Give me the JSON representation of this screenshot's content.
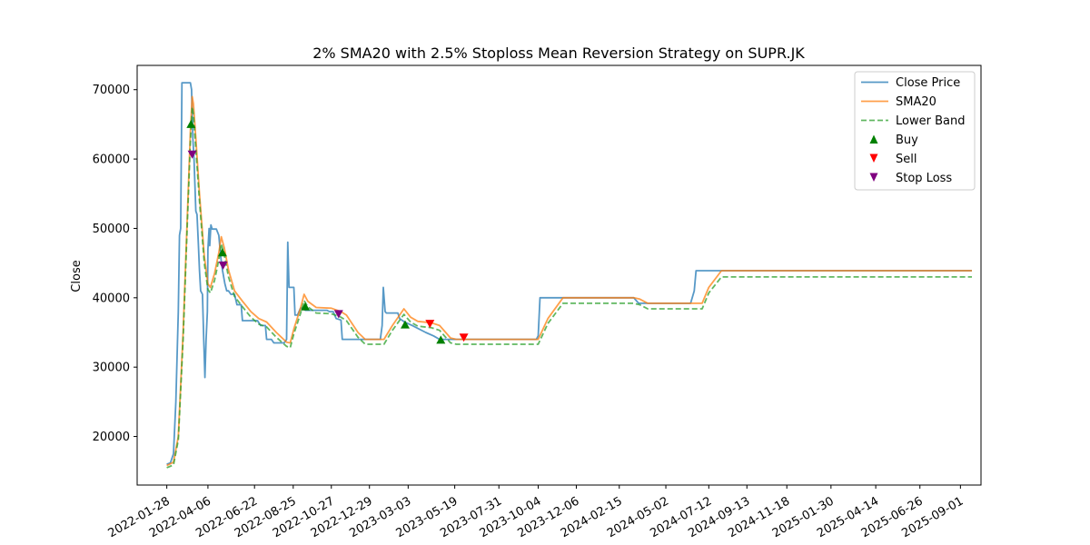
{
  "chart_data": {
    "type": "line",
    "title": "2% SMA20 with 2.5% Stoploss Mean Reversion Strategy on SUPR.JK",
    "xlabel": "",
    "ylabel": "Close",
    "ylim": [
      13000,
      73500
    ],
    "xlim": [
      "2021-12-10",
      "2025-10-05"
    ],
    "y_ticks": [
      20000,
      30000,
      40000,
      50000,
      60000,
      70000
    ],
    "x_ticks": [
      "2022-01-28",
      "2022-04-06",
      "2022-06-22",
      "2022-08-25",
      "2022-10-27",
      "2022-12-29",
      "2023-03-03",
      "2023-05-19",
      "2023-07-31",
      "2023-10-04",
      "2023-12-06",
      "2024-02-15",
      "2024-05-02",
      "2024-07-12",
      "2024-09-13",
      "2024-11-18",
      "2025-01-30",
      "2025-04-14",
      "2025-06-26",
      "2025-09-01"
    ],
    "grid": false,
    "legend_position": "top-right",
    "series": [
      {
        "name": "Close Price",
        "color": "#1f77b4",
        "style": "solid",
        "points": [
          [
            "2022-01-28",
            16000
          ],
          [
            "2022-02-03",
            16200
          ],
          [
            "2022-02-08",
            17500
          ],
          [
            "2022-02-12",
            25000
          ],
          [
            "2022-02-16",
            38000
          ],
          [
            "2022-02-18",
            49000
          ],
          [
            "2022-02-20",
            50000
          ],
          [
            "2022-02-22",
            71000
          ],
          [
            "2022-03-04",
            71000
          ],
          [
            "2022-03-08",
            71000
          ],
          [
            "2022-03-10",
            70000
          ],
          [
            "2022-03-12",
            63000
          ],
          [
            "2022-03-14",
            60000
          ],
          [
            "2022-03-17",
            52500
          ],
          [
            "2022-03-19",
            52000
          ],
          [
            "2022-03-21",
            48000
          ],
          [
            "2022-03-23",
            44000
          ],
          [
            "2022-03-25",
            41000
          ],
          [
            "2022-03-28",
            40500
          ],
          [
            "2022-03-30",
            34000
          ],
          [
            "2022-04-01",
            28500
          ],
          [
            "2022-04-03",
            34000
          ],
          [
            "2022-04-05",
            38000
          ],
          [
            "2022-04-06",
            47000
          ],
          [
            "2022-04-08",
            50000
          ],
          [
            "2022-04-09",
            47500
          ],
          [
            "2022-04-11",
            50500
          ],
          [
            "2022-04-13",
            49900
          ],
          [
            "2022-04-20",
            49900
          ],
          [
            "2022-04-24",
            49000
          ],
          [
            "2022-04-27",
            46000
          ],
          [
            "2022-04-30",
            44000
          ],
          [
            "2022-05-04",
            42000
          ],
          [
            "2022-05-07",
            41000
          ],
          [
            "2022-05-10",
            41000
          ],
          [
            "2022-05-14",
            40500
          ],
          [
            "2022-05-20",
            40500
          ],
          [
            "2022-05-24",
            39000
          ],
          [
            "2022-05-31",
            39000
          ],
          [
            "2022-06-02",
            36700
          ],
          [
            "2022-06-27",
            36700
          ],
          [
            "2022-07-02",
            36000
          ],
          [
            "2022-07-10",
            36000
          ],
          [
            "2022-07-12",
            34000
          ],
          [
            "2022-07-20",
            34000
          ],
          [
            "2022-07-24",
            33500
          ],
          [
            "2022-08-10",
            33500
          ],
          [
            "2022-08-14",
            34000
          ],
          [
            "2022-08-16",
            48000
          ],
          [
            "2022-08-18",
            41500
          ],
          [
            "2022-08-26",
            41500
          ],
          [
            "2022-08-28",
            37500
          ],
          [
            "2022-09-01",
            37500
          ],
          [
            "2022-09-06",
            38500
          ],
          [
            "2022-09-10",
            38500
          ],
          [
            "2022-09-14",
            38200
          ],
          [
            "2022-10-20",
            38200
          ],
          [
            "2022-10-24",
            38000
          ],
          [
            "2022-10-30",
            38000
          ],
          [
            "2022-11-04",
            37000
          ],
          [
            "2022-11-12",
            36800
          ],
          [
            "2022-11-14",
            34000
          ],
          [
            "2022-12-05",
            34000
          ],
          [
            "2022-12-08",
            34000
          ],
          [
            "2022-12-29",
            34000
          ],
          [
            "2023-01-16",
            34000
          ],
          [
            "2023-01-19",
            36000
          ],
          [
            "2023-01-21",
            41500
          ],
          [
            "2023-01-24",
            38000
          ],
          [
            "2023-01-26",
            37800
          ],
          [
            "2023-02-14",
            37800
          ],
          [
            "2023-02-17",
            37000
          ],
          [
            "2023-02-25",
            36500
          ],
          [
            "2023-03-10",
            36000
          ],
          [
            "2023-04-01",
            35000
          ],
          [
            "2023-04-14",
            34500
          ],
          [
            "2023-04-24",
            34000
          ],
          [
            "2023-05-19",
            34000
          ],
          [
            "2023-10-01",
            34000
          ],
          [
            "2023-10-04",
            34500
          ],
          [
            "2023-10-07",
            40000
          ],
          [
            "2024-03-10",
            40000
          ],
          [
            "2024-03-18",
            39200
          ],
          [
            "2024-06-12",
            39200
          ],
          [
            "2024-06-18",
            41000
          ],
          [
            "2024-06-21",
            43900
          ],
          [
            "2025-09-20",
            43900
          ]
        ]
      },
      {
        "name": "SMA20",
        "color": "#ff7f0e",
        "style": "solid",
        "points": [
          [
            "2022-01-28",
            15800
          ],
          [
            "2022-02-08",
            16300
          ],
          [
            "2022-02-16",
            20000
          ],
          [
            "2022-02-24",
            35000
          ],
          [
            "2022-03-03",
            52000
          ],
          [
            "2022-03-08",
            64000
          ],
          [
            "2022-03-11",
            69000
          ],
          [
            "2022-03-13",
            68000
          ],
          [
            "2022-03-17",
            63000
          ],
          [
            "2022-03-23",
            55000
          ],
          [
            "2022-03-31",
            46000
          ],
          [
            "2022-04-06",
            42000
          ],
          [
            "2022-04-10",
            41500
          ],
          [
            "2022-04-17",
            43500
          ],
          [
            "2022-04-24",
            46500
          ],
          [
            "2022-04-28",
            48800
          ],
          [
            "2022-05-03",
            47200
          ],
          [
            "2022-05-10",
            44000
          ],
          [
            "2022-05-20",
            41000
          ],
          [
            "2022-06-02",
            39500
          ],
          [
            "2022-06-16",
            38000
          ],
          [
            "2022-06-29",
            37000
          ],
          [
            "2022-07-12",
            36500
          ],
          [
            "2022-07-28",
            35000
          ],
          [
            "2022-08-14",
            33600
          ],
          [
            "2022-08-20",
            33500
          ],
          [
            "2022-08-26",
            35500
          ],
          [
            "2022-09-06",
            38500
          ],
          [
            "2022-09-12",
            40500
          ],
          [
            "2022-09-18",
            39500
          ],
          [
            "2022-10-02",
            38600
          ],
          [
            "2022-10-27",
            38500
          ],
          [
            "2022-11-12",
            38000
          ],
          [
            "2022-11-21",
            37500
          ],
          [
            "2022-12-10",
            35000
          ],
          [
            "2022-12-22",
            34000
          ],
          [
            "2023-01-22",
            34000
          ],
          [
            "2023-02-05",
            36000
          ],
          [
            "2023-02-24",
            38400
          ],
          [
            "2023-03-07",
            37200
          ],
          [
            "2023-03-19",
            36600
          ],
          [
            "2023-04-10",
            36400
          ],
          [
            "2023-04-24",
            36000
          ],
          [
            "2023-05-12",
            34200
          ],
          [
            "2023-05-22",
            34000
          ],
          [
            "2023-10-04",
            34000
          ],
          [
            "2023-10-20",
            37000
          ],
          [
            "2023-11-14",
            40000
          ],
          [
            "2024-03-10",
            40000
          ],
          [
            "2024-03-20",
            39800
          ],
          [
            "2024-04-02",
            39200
          ],
          [
            "2024-07-01",
            39200
          ],
          [
            "2024-07-12",
            41500
          ],
          [
            "2024-08-02",
            43900
          ],
          [
            "2025-09-20",
            43900
          ]
        ]
      },
      {
        "name": "Lower Band",
        "color": "#2ca02c",
        "style": "dashed",
        "points": [
          [
            "2022-01-28",
            15500
          ],
          [
            "2022-02-08",
            15900
          ],
          [
            "2022-02-16",
            19500
          ],
          [
            "2022-02-24",
            34000
          ],
          [
            "2022-03-03",
            51000
          ],
          [
            "2022-03-08",
            62500
          ],
          [
            "2022-03-11",
            67500
          ],
          [
            "2022-03-13",
            66500
          ],
          [
            "2022-03-17",
            61500
          ],
          [
            "2022-03-23",
            54000
          ],
          [
            "2022-03-31",
            45000
          ],
          [
            "2022-04-06",
            41200
          ],
          [
            "2022-04-10",
            40700
          ],
          [
            "2022-04-17",
            42500
          ],
          [
            "2022-04-24",
            45500
          ],
          [
            "2022-04-28",
            47800
          ],
          [
            "2022-05-03",
            46200
          ],
          [
            "2022-05-10",
            43000
          ],
          [
            "2022-05-20",
            40200
          ],
          [
            "2022-06-02",
            38700
          ],
          [
            "2022-06-16",
            37200
          ],
          [
            "2022-06-29",
            36200
          ],
          [
            "2022-07-12",
            35800
          ],
          [
            "2022-07-28",
            34300
          ],
          [
            "2022-08-14",
            33000
          ],
          [
            "2022-08-20",
            32800
          ],
          [
            "2022-08-26",
            34800
          ],
          [
            "2022-09-06",
            37700
          ],
          [
            "2022-09-12",
            39600
          ],
          [
            "2022-09-18",
            38700
          ],
          [
            "2022-10-02",
            37800
          ],
          [
            "2022-10-27",
            37700
          ],
          [
            "2022-11-12",
            37200
          ],
          [
            "2022-11-21",
            36700
          ],
          [
            "2022-12-10",
            34300
          ],
          [
            "2022-12-22",
            33300
          ],
          [
            "2023-01-22",
            33300
          ],
          [
            "2023-02-05",
            35300
          ],
          [
            "2023-02-24",
            37600
          ],
          [
            "2023-03-07",
            36500
          ],
          [
            "2023-03-19",
            35900
          ],
          [
            "2023-04-10",
            35700
          ],
          [
            "2023-04-24",
            35300
          ],
          [
            "2023-05-12",
            33500
          ],
          [
            "2023-05-22",
            33300
          ],
          [
            "2023-10-04",
            33300
          ],
          [
            "2023-10-20",
            36300
          ],
          [
            "2023-11-14",
            39200
          ],
          [
            "2024-03-10",
            39200
          ],
          [
            "2024-03-20",
            39000
          ],
          [
            "2024-04-02",
            38400
          ],
          [
            "2024-07-01",
            38400
          ],
          [
            "2024-07-12",
            40700
          ],
          [
            "2024-08-02",
            43000
          ],
          [
            "2025-09-20",
            43000
          ]
        ]
      }
    ],
    "markers": [
      {
        "name": "Buy",
        "color": "#008000",
        "symbol": "triangle-up",
        "points": [
          [
            "2022-03-09",
            65000
          ],
          [
            "2022-04-30",
            46500
          ],
          [
            "2022-09-14",
            38700
          ],
          [
            "2023-02-26",
            36100
          ],
          [
            "2023-04-26",
            33900
          ]
        ]
      },
      {
        "name": "Sell",
        "color": "#ff0000",
        "symbol": "triangle-down",
        "points": [
          [
            "2023-04-08",
            36300
          ],
          [
            "2023-06-03",
            34300
          ]
        ]
      },
      {
        "name": "Stop Loss",
        "color": "#800080",
        "symbol": "triangle-down",
        "points": [
          [
            "2022-03-11",
            60700
          ],
          [
            "2022-05-01",
            44700
          ],
          [
            "2022-11-08",
            37700
          ]
        ]
      }
    ]
  }
}
